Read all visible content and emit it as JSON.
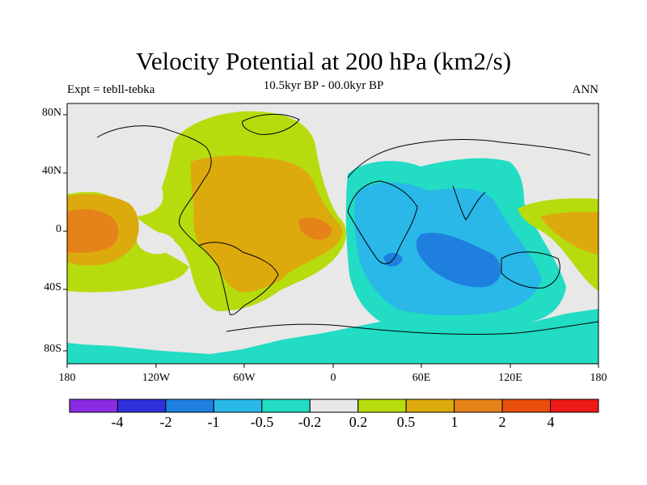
{
  "title": "Velocity Potential at 200 hPa (km2/s)",
  "subtitle_left": "Expt = tebll-tebka",
  "subtitle_center": "10.5kyr BP - 00.0kyr BP",
  "subtitle_right": "ANN",
  "map": {
    "projection": "cylindrical equidistant",
    "lon_range": [
      -180,
      180
    ],
    "lat_range": [
      -90,
      90
    ],
    "field": "velocity potential difference, 200 hPa",
    "units": "km2/s"
  },
  "y_axis_labels": [
    "80N",
    "40N",
    "0",
    "40S",
    "80S"
  ],
  "x_axis_labels": [
    "180",
    "120W",
    "60W",
    "0",
    "60E",
    "120E",
    "180"
  ],
  "colorbar": {
    "boundaries": [
      "-4",
      "-2",
      "-1",
      "-0.5",
      "-0.2",
      "0.2",
      "0.5",
      "1",
      "2",
      "4"
    ],
    "colors": [
      "#8a2be2",
      "#3030dc",
      "#1e7fde",
      "#29b8e8",
      "#22dcc4",
      "#e8e8e8",
      "#b6dc0e",
      "#dcaa0c",
      "#e6821a",
      "#e84e0c",
      "#ee1a18"
    ]
  }
}
